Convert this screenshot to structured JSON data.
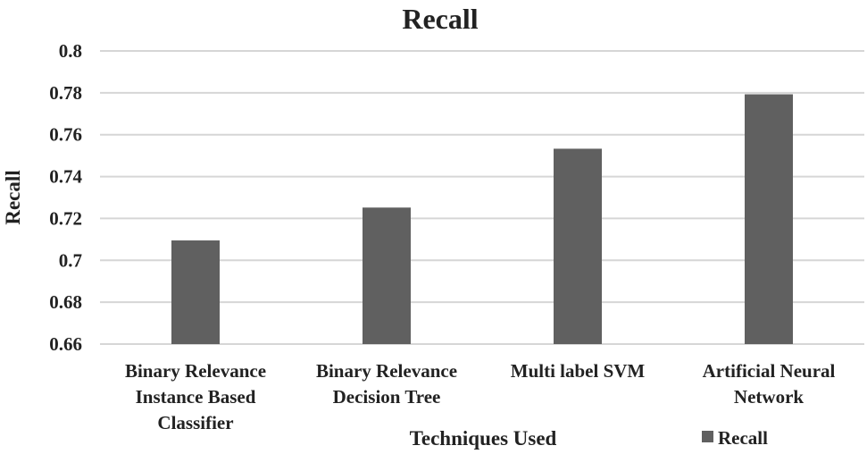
{
  "chart_data": {
    "type": "bar",
    "title": "Recall",
    "xlabel": "Techniques Used",
    "ylabel": "Recall",
    "ylim": [
      0.66,
      0.8
    ],
    "yticks": [
      "0.66",
      "0.68",
      "0.7",
      "0.72",
      "0.74",
      "0.76",
      "0.78",
      "0.8"
    ],
    "categories": [
      [
        "Binary Relevance",
        "Instance Based",
        "Classifier"
      ],
      [
        "Binary Relevance",
        "Decision Tree"
      ],
      [
        "Multi label SVM"
      ],
      [
        "Artificial Neural",
        "Network"
      ]
    ],
    "series": [
      {
        "name": "Recall",
        "values": [
          0.7095,
          0.7252,
          0.7533,
          0.7793
        ]
      }
    ],
    "grid": true,
    "legend": "bottom-right",
    "colors": {
      "bar": "#606060",
      "grid": "#d6d6d6",
      "text": "#222222"
    }
  }
}
